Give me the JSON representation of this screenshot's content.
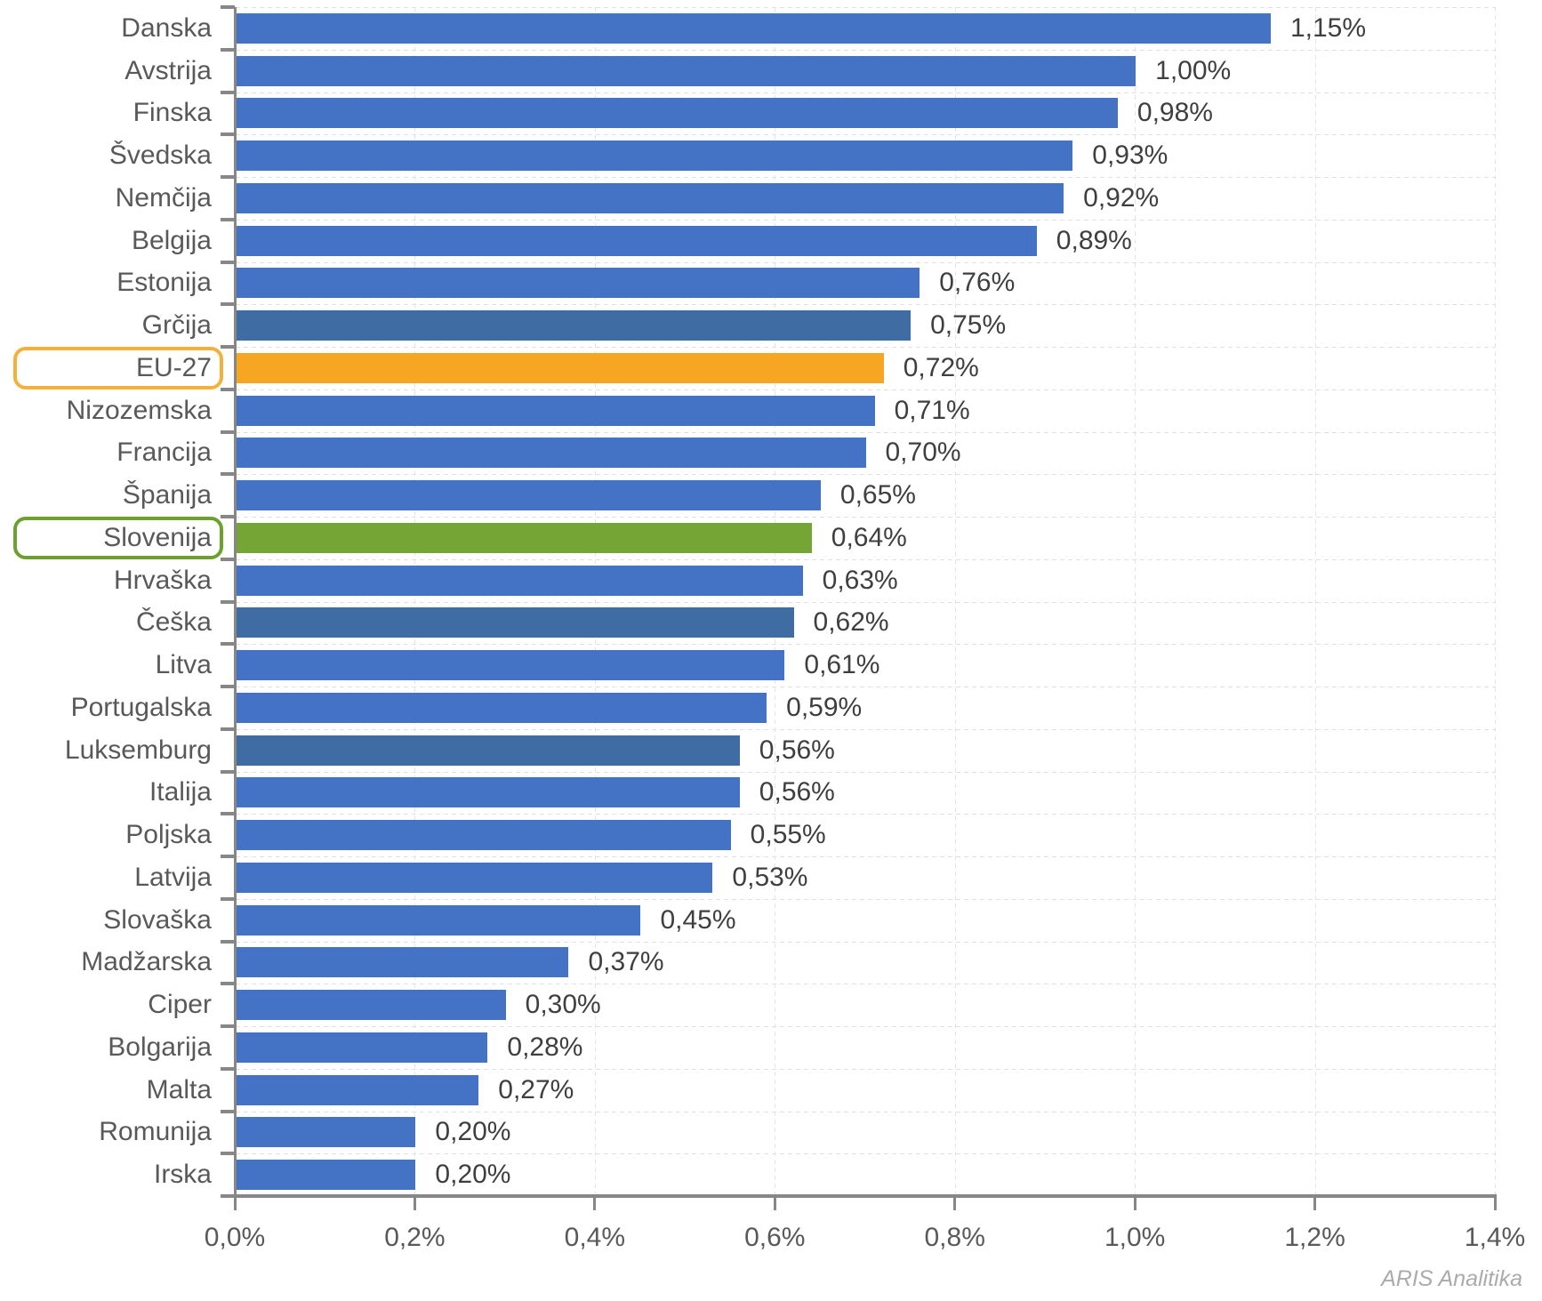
{
  "chart_data": {
    "type": "bar",
    "orientation": "horizontal",
    "title": "",
    "xlabel": "",
    "ylabel": "",
    "xlim": [
      0,
      1.4
    ],
    "x_tick_step": 0.2,
    "x_ticks": [
      "0,0%",
      "0,2%",
      "0,4%",
      "0,6%",
      "0,8%",
      "1,0%",
      "1,2%",
      "1,4%"
    ],
    "grid": "on",
    "legend": "none",
    "source": "ARIS Analitika",
    "colors": {
      "default": "#4472C4",
      "muted": "#3E6CA3",
      "eu": "#F6A622",
      "slovenia": "#75A635",
      "eu_box_border": "#F3B13C",
      "slovenia_box_border": "#6CA02F",
      "axis": "#878787",
      "grid_line": "#E4E4E4",
      "category_text": "#595959",
      "value_text": "#3F3F3F",
      "source_text": "#ABABAB"
    },
    "series": [
      {
        "category": "Danska",
        "value": 1.15,
        "label": "1,15%",
        "color": "default",
        "box": null
      },
      {
        "category": "Avstrija",
        "value": 1.0,
        "label": "1,00%",
        "color": "default",
        "box": null
      },
      {
        "category": "Finska",
        "value": 0.98,
        "label": "0,98%",
        "color": "default",
        "box": null
      },
      {
        "category": "Švedska",
        "value": 0.93,
        "label": "0,93%",
        "color": "default",
        "box": null
      },
      {
        "category": "Nemčija",
        "value": 0.92,
        "label": "0,92%",
        "color": "default",
        "box": null
      },
      {
        "category": "Belgija",
        "value": 0.89,
        "label": "0,89%",
        "color": "default",
        "box": null
      },
      {
        "category": "Estonija",
        "value": 0.76,
        "label": "0,76%",
        "color": "default",
        "box": null
      },
      {
        "category": "Grčija",
        "value": 0.75,
        "label": "0,75%",
        "color": "muted",
        "box": null
      },
      {
        "category": "EU-27",
        "value": 0.72,
        "label": "0,72%",
        "color": "eu",
        "box": "eu_box_border"
      },
      {
        "category": "Nizozemska",
        "value": 0.71,
        "label": "0,71%",
        "color": "default",
        "box": null
      },
      {
        "category": "Francija",
        "value": 0.7,
        "label": "0,70%",
        "color": "default",
        "box": null
      },
      {
        "category": "Španija",
        "value": 0.65,
        "label": "0,65%",
        "color": "default",
        "box": null
      },
      {
        "category": "Slovenija",
        "value": 0.64,
        "label": "0,64%",
        "color": "slovenia",
        "box": "slovenia_box_border"
      },
      {
        "category": "Hrvaška",
        "value": 0.63,
        "label": "0,63%",
        "color": "default",
        "box": null
      },
      {
        "category": "Češka",
        "value": 0.62,
        "label": "0,62%",
        "color": "muted",
        "box": null
      },
      {
        "category": "Litva",
        "value": 0.61,
        "label": "0,61%",
        "color": "default",
        "box": null
      },
      {
        "category": "Portugalska",
        "value": 0.59,
        "label": "0,59%",
        "color": "default",
        "box": null
      },
      {
        "category": "Luksemburg",
        "value": 0.56,
        "label": "0,56%",
        "color": "muted",
        "box": null
      },
      {
        "category": "Italija",
        "value": 0.56,
        "label": "0,56%",
        "color": "default",
        "box": null
      },
      {
        "category": "Poljska",
        "value": 0.55,
        "label": "0,55%",
        "color": "default",
        "box": null
      },
      {
        "category": "Latvija",
        "value": 0.53,
        "label": "0,53%",
        "color": "default",
        "box": null
      },
      {
        "category": "Slovaška",
        "value": 0.45,
        "label": "0,45%",
        "color": "default",
        "box": null
      },
      {
        "category": "Madžarska",
        "value": 0.37,
        "label": "0,37%",
        "color": "default",
        "box": null
      },
      {
        "category": "Ciper",
        "value": 0.3,
        "label": "0,30%",
        "color": "default",
        "box": null
      },
      {
        "category": "Bolgarija",
        "value": 0.28,
        "label": "0,28%",
        "color": "default",
        "box": null
      },
      {
        "category": "Malta",
        "value": 0.27,
        "label": "0,27%",
        "color": "default",
        "box": null
      },
      {
        "category": "Romunija",
        "value": 0.2,
        "label": "0,20%",
        "color": "default",
        "box": null
      },
      {
        "category": "Irska",
        "value": 0.2,
        "label": "0,20%",
        "color": "default",
        "box": null
      }
    ]
  }
}
